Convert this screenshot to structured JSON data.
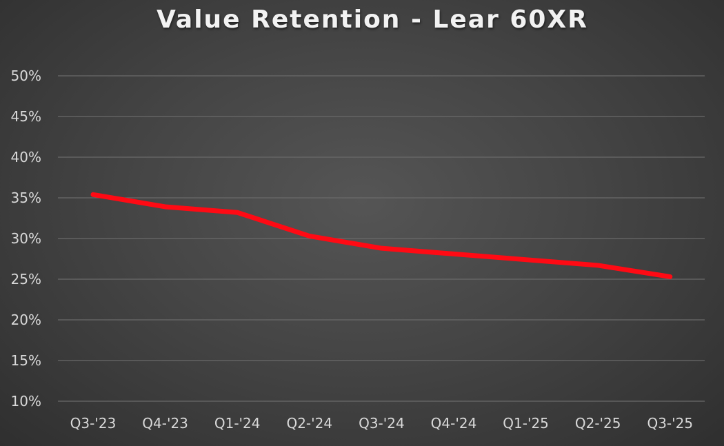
{
  "chart_data": {
    "type": "line",
    "title": "Value Retention - Lear 60XR",
    "xlabel": "",
    "ylabel": "",
    "categories": [
      "Q3-'23",
      "Q4-'23",
      "Q1-'24",
      "Q2-'24",
      "Q3-'24",
      "Q4-'24",
      "Q1-'25",
      "Q2-'25",
      "Q3-'25"
    ],
    "series": [
      {
        "values": [
          35.4,
          33.9,
          33.2,
          30.3,
          28.8,
          28.1,
          27.4,
          26.7,
          25.3
        ],
        "color": "#ff0a14"
      }
    ],
    "ylim": [
      10,
      50
    ],
    "yticks": [
      10,
      15,
      20,
      25,
      30,
      35,
      40,
      45,
      50
    ],
    "ytick_labels": [
      "10%",
      "15%",
      "20%",
      "25%",
      "30%",
      "35%",
      "40%",
      "45%",
      "50%"
    ],
    "grid": true,
    "legend": "none",
    "background": "#3c3c3c",
    "grid_color": "#6a6a6a",
    "text_color": "#d9d9d9"
  }
}
